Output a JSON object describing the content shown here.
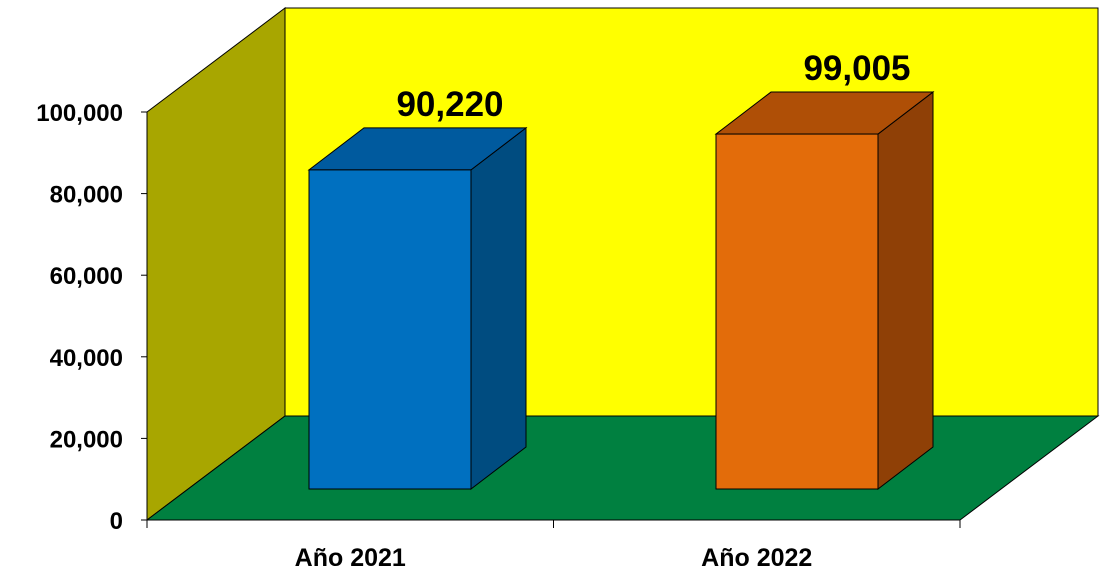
{
  "chart_data": {
    "type": "bar",
    "categories": [
      "Año 2021",
      "Año 2022"
    ],
    "values": [
      90220,
      99005
    ],
    "data_labels": [
      "90,220",
      "99,005"
    ],
    "y_ticks": [
      0,
      20000,
      40000,
      60000,
      80000,
      100000
    ],
    "y_tick_labels": [
      "0",
      "20,000",
      "40,000",
      "60,000",
      "80,000",
      "100,000"
    ],
    "ylim": [
      0,
      100000
    ],
    "grid": false,
    "legend": "none",
    "style": "3d-column",
    "colors": {
      "back_wall": "#FFFF00",
      "side_wall": "#A8A600",
      "floor": "#008040",
      "bars": [
        {
          "front": "#0070C0",
          "top": "#005A9E",
          "side": "#004C80"
        },
        {
          "front": "#E36C0A",
          "top": "#AF4F06",
          "side": "#8F4006"
        }
      ]
    }
  }
}
